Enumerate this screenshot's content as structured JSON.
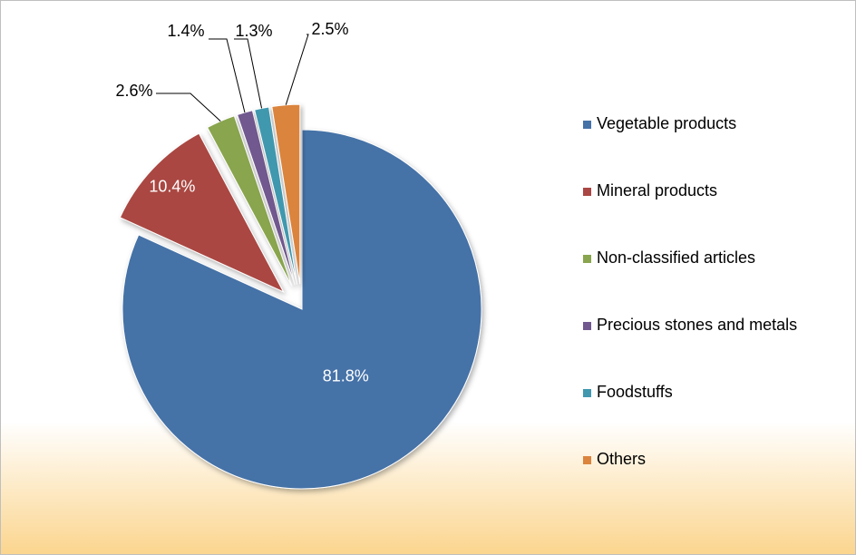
{
  "chart_data": {
    "type": "pie",
    "categories": [
      "Vegetable products",
      "Mineral products",
      "Non-classified articles",
      "Precious stones and metals",
      "Foodstuffs",
      "Others"
    ],
    "values": [
      81.8,
      10.4,
      2.6,
      1.4,
      1.3,
      2.5
    ],
    "value_labels": [
      "81.8%",
      "10.4%",
      "2.6%",
      "1.4%",
      "1.3%",
      "2.5%"
    ],
    "colors": [
      "#4572a7",
      "#aa4643",
      "#89a54e",
      "#71588f",
      "#4198af",
      "#db843d"
    ],
    "legend": "right"
  }
}
